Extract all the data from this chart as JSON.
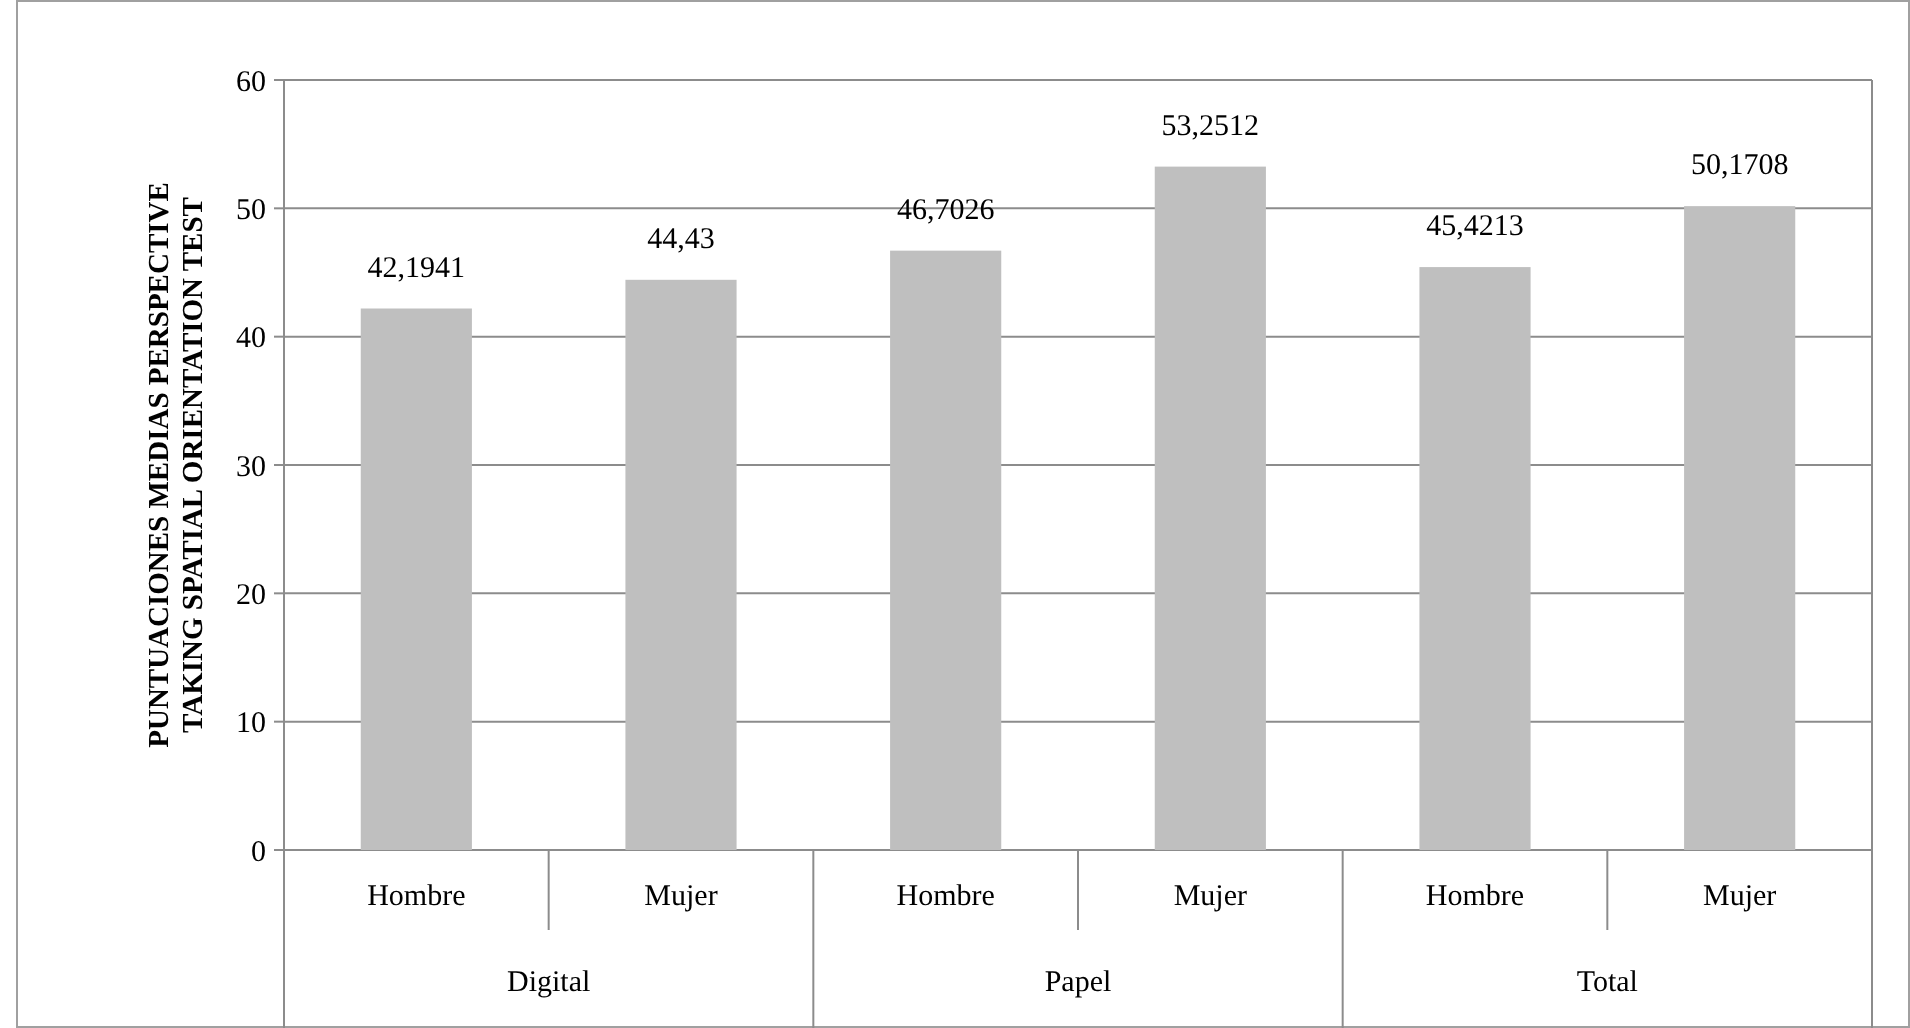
{
  "chart_data": {
    "type": "bar",
    "ylabel": "PUNTUACIONES MEDIAS PERSPECTIVE TAKING SPATIAL ORIENTATION TEST",
    "categories": [
      "Hombre",
      "Mujer",
      "Hombre",
      "Mujer",
      "Hombre",
      "Mujer"
    ],
    "values": [
      42.1941,
      44.43,
      46.7026,
      53.2512,
      45.4213,
      50.1708
    ],
    "value_labels": [
      "42,1941",
      "44,43",
      "46,7026",
      "53,2512",
      "45,4213",
      "50,1708"
    ],
    "color": "#bfbfbf",
    "annotations": [
      "Digital",
      "Papel",
      "Total"
    ],
    "ylim": [
      0,
      60
    ],
    "yticks": [
      0,
      10,
      20,
      30,
      40,
      50,
      60
    ],
    "grid": "y"
  }
}
